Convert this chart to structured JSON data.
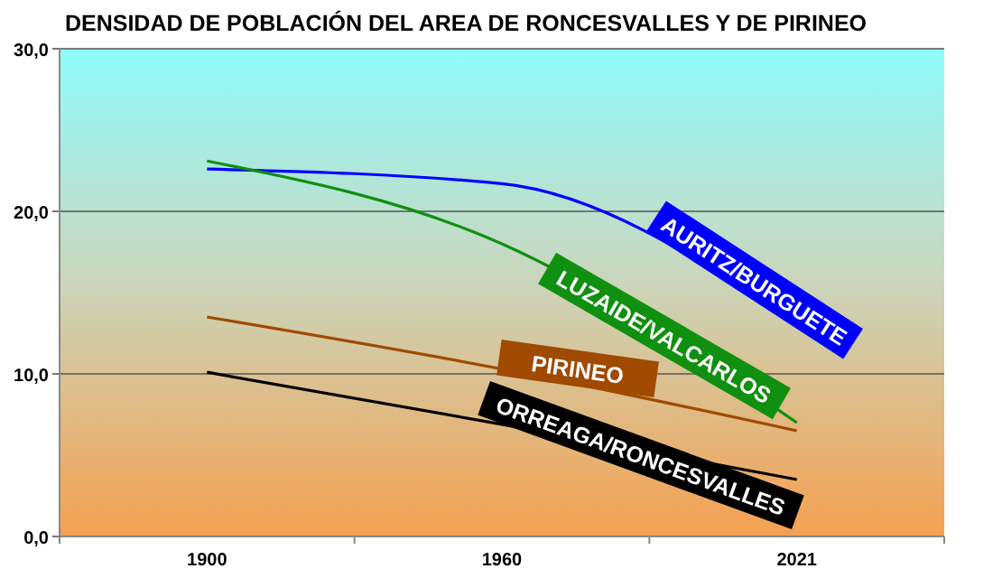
{
  "chart_data": {
    "type": "line",
    "title": "DENSIDAD DE POBLACIÓN DEL AREA DE RONCESVALLES Y DE PIRINEO",
    "categories": [
      "1900",
      "1960",
      "2021"
    ],
    "series": [
      {
        "name": "AURITZ/BURGUETE",
        "color": "#0000ff",
        "values": [
          22.6,
          21.7,
          13
        ]
      },
      {
        "name": "LUZAIDE/VALCARLOS",
        "color": "#109010",
        "values": [
          23.1,
          18,
          7
        ]
      },
      {
        "name": "PIRINEO",
        "color": "#a04a00",
        "values": [
          13.5,
          10.3,
          6.5
        ]
      },
      {
        "name": "ORREAGA/RONCESVALLES",
        "color": "#000000",
        "values": [
          10.1,
          6.9,
          3.5
        ]
      }
    ],
    "ylim": [
      0,
      30
    ],
    "yticks": [
      {
        "value": 0,
        "label": "0,0"
      },
      {
        "value": 10,
        "label": "10,0"
      },
      {
        "value": 20,
        "label": "20,0"
      },
      {
        "value": 30,
        "label": "30,0"
      }
    ],
    "grid": "y"
  }
}
